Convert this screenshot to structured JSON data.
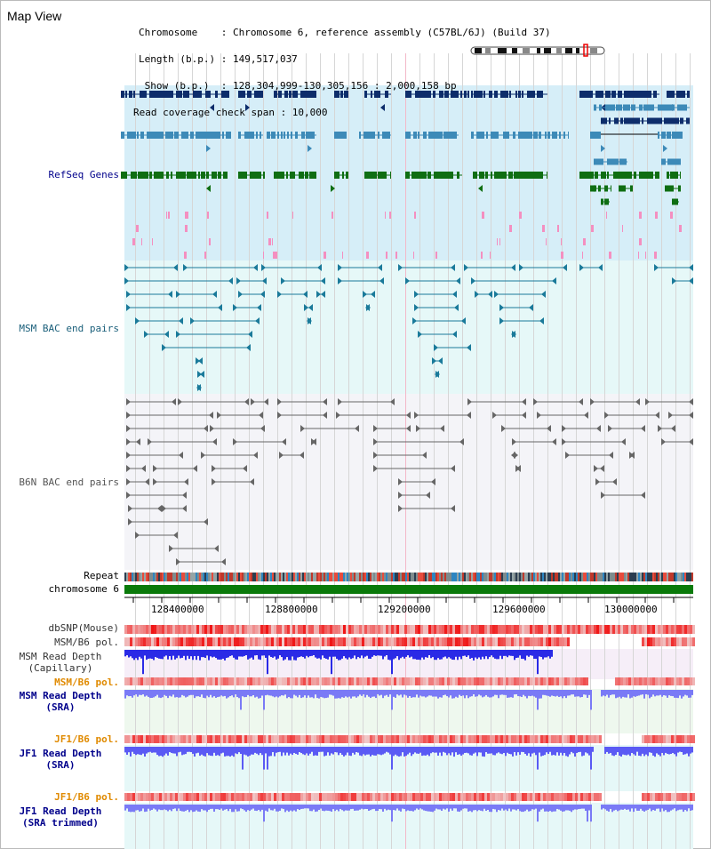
{
  "header": {
    "title": "Map View",
    "info_lines": [
      "Chromosome    : Chromosome 6, reference assembly (C57BL/6J) (Build 37)",
      "Length (b.p.) : 149,517,037",
      " Show (b.p.)  : 128,304,999-130,305,156 : 2,000,158 bp",
      "Read coverage check span : 10,000"
    ]
  },
  "tracks": {
    "refseq": "RefSeq Genes",
    "msm_bac": "MSM BAC end pairs",
    "b6n_bac": "B6N BAC end pairs",
    "repeat": "Repeat",
    "chromosome": "chromosome 6",
    "dbsnp": "dbSNP(Mouse)",
    "msm_b6_pol": "MSM/B6 pol.",
    "msm_depth_cap_1": "MSM Read Depth",
    "msm_depth_cap_2": "(Capillary)",
    "msm_b6_pol_2": "MSM/B6 pol.",
    "msm_depth_sra_1": "MSM Read Depth",
    "msm_depth_sra_2": "(SRA)",
    "jf1_b6_pol": "JF1/B6 pol.",
    "jf1_depth_sra_1": "JF1 Read Depth",
    "jf1_depth_sra_2": "(SRA)",
    "jf1_b6_pol_2": "JF1/B6 pol.",
    "jf1_depth_trim_1": "JF1 Read Depth",
    "jf1_depth_trim_2": "(SRA trimmed)"
  },
  "axis": {
    "ticks": [
      "128400000",
      "128800000",
      "129200000",
      "129600000",
      "130000000"
    ]
  },
  "colors": {
    "refseq_dark": "#0d2d6b",
    "refseq_mid": "#3d8ab8",
    "refseq_green": "#0f6e12",
    "msm_bac": "#1a7a9a",
    "b6n_bac": "#666666",
    "chromosome": "#0a7a0a",
    "depth_blue": "#3333ee",
    "pol_orange": "#e08a00",
    "label_blue": "#00008b"
  }
}
